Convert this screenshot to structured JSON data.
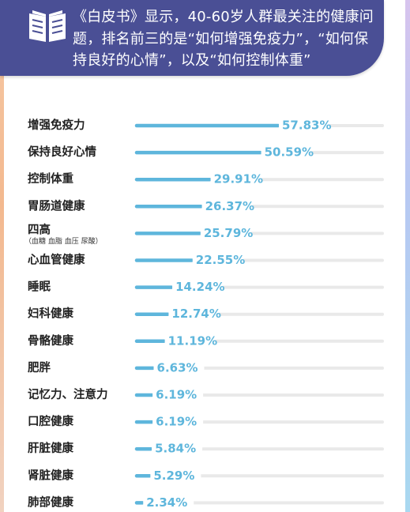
{
  "header": {
    "headline": "《白皮书》显示，40-60岁人群最关注的健康问题，排名前三的是“如何增强免疫力”，“如何保持良好的心情”，以及“如何控制体重”",
    "icon": "book-icon"
  },
  "colors": {
    "banner": "#4a4f95",
    "bar": "#5eb6dc",
    "track": "#e9e9e9",
    "value_text": "#5eb6dc"
  },
  "chart_data": {
    "type": "bar",
    "orientation": "horizontal",
    "categories": [
      "增强免疫力",
      "保持良好心情",
      "控制体重",
      "胃肠道健康",
      "四高",
      "心血管健康",
      "睡眠",
      "妇科健康",
      "骨骼健康",
      "肥胖",
      "记忆力、注意力",
      "口腔健康",
      "肝脏健康",
      "肾脏健康",
      "肺部健康"
    ],
    "category_notes": {
      "四高": "（血糖 血脂 血压 尿酸）"
    },
    "values": [
      57.83,
      50.59,
      29.91,
      26.37,
      25.79,
      22.55,
      14.24,
      12.74,
      11.19,
      6.63,
      6.19,
      6.19,
      5.84,
      5.29,
      2.34
    ],
    "value_labels": [
      "57.83%",
      "50.59%",
      "29.91%",
      "26.37%",
      "25.79%",
      "22.55%",
      "14.24%",
      "12.74%",
      "11.19%",
      "6.63%",
      "6.19%",
      "6.19%",
      "5.84%",
      "5.29%",
      "2.34%"
    ],
    "xlim": [
      0,
      100
    ],
    "grid": false,
    "legend": "none"
  }
}
